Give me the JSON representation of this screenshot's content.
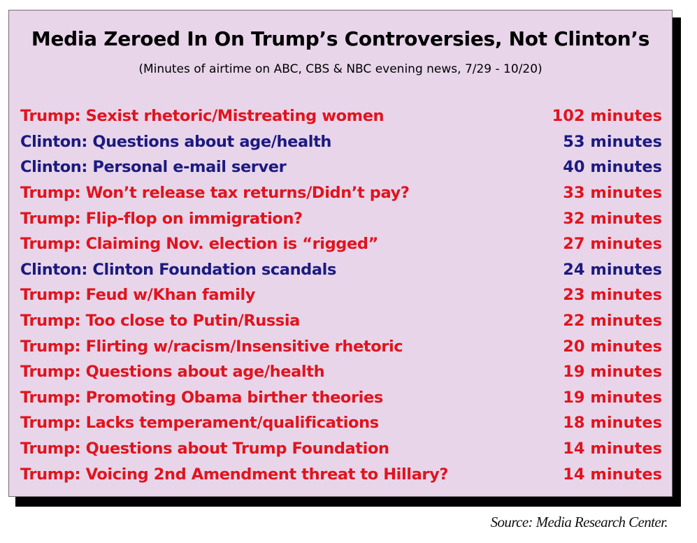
{
  "colors": {
    "trump": "#e0141e",
    "clinton": "#1c1a80",
    "panel_background": "#e8d5ea",
    "shadow": "#000000"
  },
  "chart_data": {
    "type": "table",
    "title": "Media Zeroed In On Trump’s Controversies, Not Clinton’s",
    "subtitle": "(Minutes of airtime on ABC, CBS & NBC evening news, 7/29 - 10/20)",
    "unit": "minutes",
    "rows": [
      {
        "party": "trump",
        "label": "Trump: Sexist rhetoric/Mistreating women",
        "minutes": 102,
        "value_text": "102 minutes"
      },
      {
        "party": "clinton",
        "label": "Clinton: Questions about age/health",
        "minutes": 53,
        "value_text": "53 minutes"
      },
      {
        "party": "clinton",
        "label": "Clinton: Personal e-mail server",
        "minutes": 40,
        "value_text": "40 minutes"
      },
      {
        "party": "trump",
        "label": "Trump: Won’t release tax returns/Didn’t pay?",
        "minutes": 33,
        "value_text": "33 minutes"
      },
      {
        "party": "trump",
        "label": "Trump: Flip-flop on immigration?",
        "minutes": 32,
        "value_text": "32 minutes"
      },
      {
        "party": "trump",
        "label": "Trump: Claiming Nov. election is “rigged”",
        "minutes": 27,
        "value_text": "27 minutes"
      },
      {
        "party": "clinton",
        "label": "Clinton: Clinton Foundation scandals",
        "minutes": 24,
        "value_text": "24 minutes"
      },
      {
        "party": "trump",
        "label": "Trump: Feud w/Khan family",
        "minutes": 23,
        "value_text": "23 minutes"
      },
      {
        "party": "trump",
        "label": "Trump: Too close to Putin/Russia",
        "minutes": 22,
        "value_text": "22 minutes"
      },
      {
        "party": "trump",
        "label": "Trump: Flirting w/racism/Insensitive rhetoric",
        "minutes": 20,
        "value_text": "20 minutes"
      },
      {
        "party": "trump",
        "label": "Trump: Questions about age/health",
        "minutes": 19,
        "value_text": "19 minutes"
      },
      {
        "party": "trump",
        "label": "Trump: Promoting Obama birther theories",
        "minutes": 19,
        "value_text": "19 minutes"
      },
      {
        "party": "trump",
        "label": "Trump: Lacks temperament/qualifications",
        "minutes": 18,
        "value_text": "18 minutes"
      },
      {
        "party": "trump",
        "label": "Trump: Questions about Trump Foundation",
        "minutes": 14,
        "value_text": "14 minutes"
      },
      {
        "party": "trump",
        "label": "Trump: Voicing 2nd Amendment threat to Hillary?",
        "minutes": 14,
        "value_text": "14 minutes"
      }
    ]
  },
  "source": "Source: Media Research Center."
}
